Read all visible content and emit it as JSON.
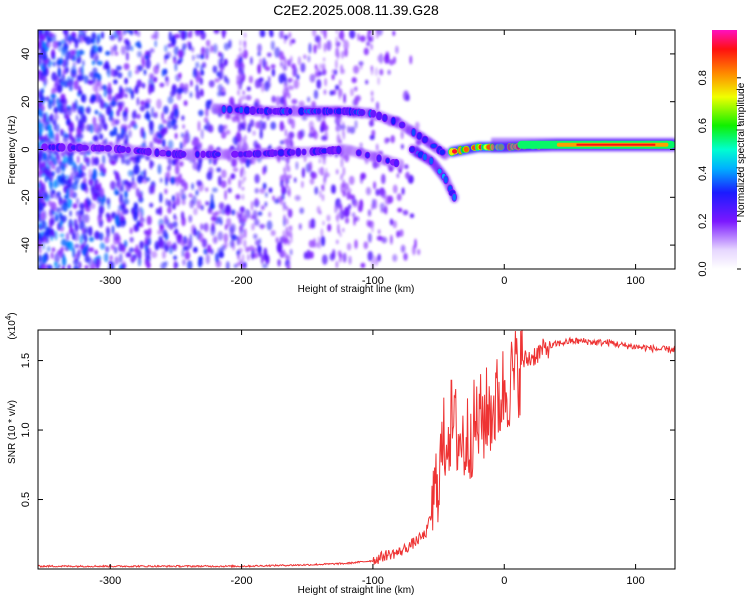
{
  "figure_title": "C2E2.2025.008.11.39.G28",
  "chart_data": [
    {
      "type": "heatmap",
      "xlabel": "Height of straight line (km)",
      "ylabel": "Frequency (Hz)",
      "xlim": [
        -355,
        130
      ],
      "ylim": [
        -50,
        50
      ],
      "xticks": [
        -300,
        -200,
        -100,
        0,
        100
      ],
      "yticks": [
        -40,
        -20,
        0,
        20,
        40
      ],
      "colorbar": {
        "label": "Normalized spectral amplitude",
        "range": [
          0,
          1
        ],
        "ticks": [
          "0.0",
          "0.2",
          "0.4",
          "0.6",
          "0.8"
        ],
        "tick_values": [
          0.0,
          0.2,
          0.4,
          0.6,
          0.8
        ],
        "colormap": "rainbow (white-violet-blue-cyan-green-yellow-red-magenta)"
      },
      "features": [
        {
          "name": "",
          "points": [
            [
              -350,
              1
            ],
            [
              -300,
              0.5
            ],
            [
              -250,
              -2
            ],
            [
              -200,
              -2
            ],
            [
              -150,
              -1
            ],
            [
              -120,
              0
            ],
            [
              -100,
              -3
            ],
            [
              -80,
              -6
            ]
          ],
          "amplitude": 0.25
        },
        {
          "name": "",
          "points": [
            [
              -220,
              17
            ],
            [
              -180,
              16
            ],
            [
              -150,
              16
            ],
            [
              -120,
              16
            ],
            [
              -100,
              15
            ],
            [
              -80,
              11
            ],
            [
              -60,
              4
            ],
            [
              -45,
              -2
            ]
          ],
          "amplitude": 0.3
        },
        {
          "name": "",
          "points": [
            [
              -70,
              0
            ],
            [
              -55,
              -5
            ],
            [
              -45,
              -12
            ],
            [
              -38,
              -20
            ]
          ],
          "amplitude": 0.35
        },
        {
          "name": "",
          "points": [
            [
              -40,
              -1
            ],
            [
              -20,
              1
            ],
            [
              0,
              1
            ],
            [
              40,
              2
            ],
            [
              80,
              2
            ],
            [
              130,
              2
            ]
          ],
          "amplitude": 0.75
        }
      ],
      "grid": false
    },
    {
      "type": "line",
      "xlabel": "Height of straight line (km)",
      "ylabel": "SNR (10 * v/v)",
      "y_multiplier": "(x10^4)",
      "y_multiplier_base": "(x10",
      "y_multiplier_exp": "4",
      "y_multiplier_close": ")",
      "xlim": [
        -355,
        130
      ],
      "ylim": [
        0,
        1.72
      ],
      "xticks": [
        -300,
        -200,
        -100,
        0,
        100
      ],
      "yticks": [
        0.5,
        1.0,
        1.5
      ],
      "ytick_labels": [
        "0.5",
        "1.0",
        "1.5"
      ],
      "series": [
        {
          "color": "#ee3333",
          "points": [
            [
              -355,
              0.02
            ],
            [
              -300,
              0.02
            ],
            [
              -250,
              0.02
            ],
            [
              -200,
              0.02
            ],
            [
              -150,
              0.03
            ],
            [
              -120,
              0.04
            ],
            [
              -100,
              0.06
            ],
            [
              -90,
              0.1
            ],
            [
              -80,
              0.12
            ],
            [
              -70,
              0.18
            ],
            [
              -60,
              0.25
            ],
            [
              -55,
              0.4
            ],
            [
              -50,
              0.7
            ],
            [
              -45,
              0.95
            ],
            [
              -40,
              1.05
            ],
            [
              -35,
              0.95
            ],
            [
              -30,
              0.9
            ],
            [
              -25,
              1.0
            ],
            [
              -20,
              1.05
            ],
            [
              -15,
              1.1
            ],
            [
              -10,
              1.15
            ],
            [
              -5,
              1.2
            ],
            [
              0,
              1.3
            ],
            [
              5,
              1.35
            ],
            [
              10,
              1.42
            ],
            [
              15,
              1.5
            ],
            [
              20,
              1.52
            ],
            [
              30,
              1.58
            ],
            [
              40,
              1.62
            ],
            [
              50,
              1.64
            ],
            [
              60,
              1.64
            ],
            [
              70,
              1.63
            ],
            [
              80,
              1.63
            ],
            [
              90,
              1.61
            ],
            [
              100,
              1.6
            ],
            [
              110,
              1.59
            ],
            [
              120,
              1.58
            ],
            [
              130,
              1.58
            ]
          ]
        }
      ],
      "grid": false
    }
  ]
}
